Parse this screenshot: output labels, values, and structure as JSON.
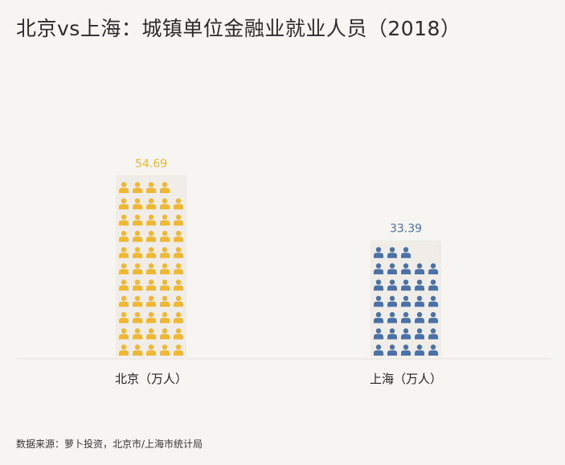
{
  "title": "北京vs上海：城镇单位金融业就业人员（2018）",
  "source": "数据来源：萝卜投资，北京市/上海市统计局",
  "chart_data": {
    "type": "bar",
    "categories": [
      "北京（万人）",
      "上海（万人）"
    ],
    "values": [
      54.69,
      33.39
    ],
    "data_labels": [
      "54.69",
      "33.39"
    ],
    "colors": [
      "#f0b731",
      "#4a72a8"
    ],
    "icon": "person-icon"
  }
}
